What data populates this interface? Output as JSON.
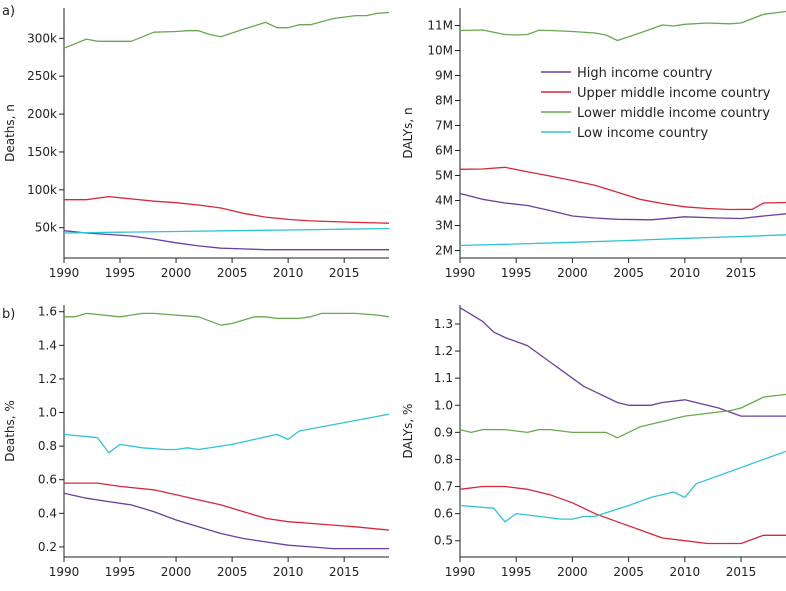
{
  "panel_labels": [
    "a)",
    "b)"
  ],
  "legend": {
    "entries": [
      {
        "name": "High income country",
        "color": "#6a3fa0"
      },
      {
        "name": "Upper middle income country",
        "color": "#d62839"
      },
      {
        "name": "Lower middle income country",
        "color": "#6aa84f"
      },
      {
        "name": "Low income country",
        "color": "#2ec4d6"
      }
    ]
  },
  "chart_data": [
    {
      "type": "line",
      "title": "",
      "xlabel": "",
      "ylabel": "Deaths, n",
      "xlim": [
        1990,
        2019
      ],
      "ylim": [
        10000,
        340000
      ],
      "xticks": [
        1990,
        1995,
        2000,
        2005,
        2010,
        2015
      ],
      "xtick_labels": [
        "1990",
        "1995",
        "2000",
        "2005",
        "2010",
        "2015"
      ],
      "yticks": [
        50000,
        100000,
        150000,
        200000,
        250000,
        300000
      ],
      "ytick_labels": [
        "50k",
        "100k",
        "150k",
        "200k",
        "250k",
        "300k"
      ],
      "series": [
        {
          "name": "High income country",
          "color": "#6a3fa0",
          "x": [
            1990,
            1992,
            1994,
            1996,
            1998,
            2000,
            2002,
            2004,
            2006,
            2008,
            2010,
            2012,
            2014,
            2016,
            2019
          ],
          "y": [
            46000,
            43000,
            41000,
            39000,
            35000,
            30000,
            26000,
            23000,
            22000,
            21000,
            21000,
            21000,
            21000,
            21000,
            21000
          ]
        },
        {
          "name": "Upper middle income country",
          "color": "#d62839",
          "x": [
            1990,
            1992,
            1994,
            1996,
            1998,
            2000,
            2002,
            2004,
            2006,
            2008,
            2010,
            2012,
            2014,
            2016,
            2019
          ],
          "y": [
            87000,
            87000,
            91000,
            88000,
            85000,
            83000,
            80000,
            76000,
            69000,
            64000,
            61000,
            59000,
            58000,
            57000,
            56000
          ]
        },
        {
          "name": "Lower middle income country",
          "color": "#6aa84f",
          "x": [
            1990,
            1992,
            1993,
            1994,
            1996,
            1997,
            1998,
            2000,
            2001,
            2002,
            2003,
            2004,
            2006,
            2008,
            2009,
            2010,
            2011,
            2012,
            2013,
            2014,
            2016,
            2017,
            2018,
            2019
          ],
          "y": [
            287000,
            299000,
            296000,
            296000,
            296000,
            302000,
            308000,
            309000,
            310000,
            310000,
            305000,
            302000,
            312000,
            321000,
            314000,
            314000,
            318000,
            318000,
            322000,
            326000,
            330000,
            330000,
            333000,
            334000
          ]
        },
        {
          "name": "Low income country",
          "color": "#2ec4d6",
          "x": [
            1990,
            1995,
            2000,
            2005,
            2010,
            2015,
            2019
          ],
          "y": [
            43000,
            44000,
            45000,
            46000,
            47000,
            48000,
            49000
          ]
        }
      ]
    },
    {
      "type": "line",
      "title": "",
      "xlabel": "",
      "ylabel": "DALYs, n",
      "xlim": [
        1990,
        2019
      ],
      "ylim": [
        1700000,
        11700000
      ],
      "xticks": [
        1990,
        1995,
        2000,
        2005,
        2010,
        2015
      ],
      "xtick_labels": [
        "1990",
        "1995",
        "2000",
        "2005",
        "2010",
        "2015"
      ],
      "yticks": [
        2000000,
        3000000,
        4000000,
        5000000,
        6000000,
        7000000,
        8000000,
        9000000,
        10000000,
        11000000
      ],
      "ytick_labels": [
        "2M",
        "3M",
        "4M",
        "5M",
        "6M",
        "7M",
        "8M",
        "9M",
        "10M",
        "11M"
      ],
      "series": [
        {
          "name": "High income country",
          "color": "#6a3fa0",
          "x": [
            1990,
            1992,
            1994,
            1996,
            1998,
            2000,
            2002,
            2004,
            2007,
            2010,
            2013,
            2015,
            2017,
            2019
          ],
          "y": [
            4280000,
            4050000,
            3900000,
            3800000,
            3600000,
            3380000,
            3300000,
            3250000,
            3230000,
            3350000,
            3300000,
            3280000,
            3380000,
            3470000
          ]
        },
        {
          "name": "Upper middle income country",
          "color": "#d62839",
          "x": [
            1990,
            1992,
            1994,
            1996,
            1998,
            2000,
            2002,
            2004,
            2006,
            2008,
            2010,
            2012,
            2014,
            2016,
            2017,
            2019
          ],
          "y": [
            5250000,
            5260000,
            5330000,
            5150000,
            4980000,
            4800000,
            4610000,
            4330000,
            4050000,
            3880000,
            3750000,
            3680000,
            3640000,
            3650000,
            3900000,
            3920000
          ]
        },
        {
          "name": "Lower middle income country",
          "color": "#6aa84f",
          "x": [
            1990,
            1992,
            1994,
            1995,
            1996,
            1997,
            1998,
            2000,
            2002,
            2003,
            2004,
            2006,
            2008,
            2009,
            2010,
            2012,
            2014,
            2015,
            2017,
            2019
          ],
          "y": [
            10800000,
            10820000,
            10640000,
            10620000,
            10640000,
            10810000,
            10800000,
            10760000,
            10700000,
            10620000,
            10400000,
            10700000,
            11020000,
            10980000,
            11050000,
            11100000,
            11070000,
            11100000,
            11450000,
            11560000
          ]
        },
        {
          "name": "Low income country",
          "color": "#2ec4d6",
          "x": [
            1990,
            1995,
            2000,
            2005,
            2010,
            2015,
            2019
          ],
          "y": [
            2200000,
            2260000,
            2330000,
            2400000,
            2490000,
            2560000,
            2630000
          ]
        }
      ]
    },
    {
      "type": "line",
      "title": "",
      "xlabel": "",
      "ylabel": "Deaths, %",
      "xlim": [
        1990,
        2019
      ],
      "ylim": [
        0.14,
        1.64
      ],
      "xticks": [
        1990,
        1995,
        2000,
        2005,
        2010,
        2015
      ],
      "xtick_labels": [
        "1990",
        "1995",
        "2000",
        "2005",
        "2010",
        "2015"
      ],
      "yticks": [
        0.2,
        0.4,
        0.6,
        0.8,
        1.0,
        1.2,
        1.4,
        1.6
      ],
      "ytick_labels": [
        "0.2",
        "0.4",
        "0.6",
        "0.8",
        "1.0",
        "1.2",
        "1.4",
        "1.6"
      ],
      "series": [
        {
          "name": "High income country",
          "color": "#6a3fa0",
          "x": [
            1990,
            1992,
            1994,
            1996,
            1998,
            2000,
            2002,
            2004,
            2006,
            2008,
            2010,
            2012,
            2014,
            2016,
            2019
          ],
          "y": [
            0.52,
            0.49,
            0.47,
            0.45,
            0.41,
            0.36,
            0.32,
            0.28,
            0.25,
            0.23,
            0.21,
            0.2,
            0.19,
            0.19,
            0.19
          ]
        },
        {
          "name": "Upper middle income country",
          "color": "#d62839",
          "x": [
            1990,
            1993,
            1995,
            1998,
            2000,
            2002,
            2004,
            2006,
            2008,
            2010,
            2012,
            2014,
            2016,
            2019
          ],
          "y": [
            0.58,
            0.58,
            0.56,
            0.54,
            0.51,
            0.48,
            0.45,
            0.41,
            0.37,
            0.35,
            0.34,
            0.33,
            0.32,
            0.3
          ]
        },
        {
          "name": "Lower middle income country",
          "color": "#6aa84f",
          "x": [
            1990,
            1991,
            1992,
            1995,
            1997,
            1998,
            2000,
            2002,
            2004,
            2005,
            2006,
            2007,
            2008,
            2009,
            2010,
            2011,
            2012,
            2013,
            2014,
            2016,
            2018,
            2019
          ],
          "y": [
            1.57,
            1.57,
            1.59,
            1.57,
            1.59,
            1.59,
            1.58,
            1.57,
            1.52,
            1.53,
            1.55,
            1.57,
            1.57,
            1.56,
            1.56,
            1.56,
            1.57,
            1.59,
            1.59,
            1.59,
            1.58,
            1.57
          ]
        },
        {
          "name": "Low income country",
          "color": "#2ec4d6",
          "x": [
            1990,
            1993,
            1994,
            1995,
            1997,
            1999,
            2000,
            2001,
            2002,
            2005,
            2007,
            2009,
            2010,
            2011,
            2019
          ],
          "y": [
            0.87,
            0.85,
            0.76,
            0.81,
            0.79,
            0.78,
            0.78,
            0.79,
            0.78,
            0.81,
            0.84,
            0.87,
            0.84,
            0.89,
            0.99
          ]
        }
      ]
    },
    {
      "type": "line",
      "title": "",
      "xlabel": "",
      "ylabel": "DALYs, %",
      "xlim": [
        1990,
        2019
      ],
      "ylim": [
        0.44,
        1.37
      ],
      "xticks": [
        1990,
        1995,
        2000,
        2005,
        2010,
        2015
      ],
      "xtick_labels": [
        "1990",
        "1995",
        "2000",
        "2005",
        "2010",
        "2015"
      ],
      "yticks": [
        0.5,
        0.6,
        0.7,
        0.8,
        0.9,
        1.0,
        1.1,
        1.2,
        1.3
      ],
      "ytick_labels": [
        "0.5",
        "0.6",
        "0.7",
        "0.8",
        "0.9",
        "1.0",
        "1.1",
        "1.2",
        "1.3"
      ],
      "series": [
        {
          "name": "High income country",
          "color": "#6a3fa0",
          "x": [
            1990,
            1992,
            1993,
            1994,
            1996,
            1998,
            2000,
            2001,
            2002,
            2004,
            2005,
            2006,
            2007,
            2008,
            2010,
            2013,
            2015,
            2019
          ],
          "y": [
            1.36,
            1.31,
            1.27,
            1.25,
            1.22,
            1.16,
            1.1,
            1.07,
            1.05,
            1.01,
            1.0,
            1.0,
            1.0,
            1.01,
            1.02,
            0.99,
            0.96,
            0.96
          ]
        },
        {
          "name": "Upper middle income country",
          "color": "#d62839",
          "x": [
            1990,
            1992,
            1994,
            1996,
            1998,
            2000,
            2002,
            2004,
            2006,
            2008,
            2010,
            2012,
            2015,
            2017,
            2019
          ],
          "y": [
            0.69,
            0.7,
            0.7,
            0.69,
            0.67,
            0.64,
            0.6,
            0.57,
            0.54,
            0.51,
            0.5,
            0.49,
            0.49,
            0.52,
            0.52
          ]
        },
        {
          "name": "Lower middle income country",
          "color": "#6aa84f",
          "x": [
            1990,
            1991,
            1992,
            1994,
            1996,
            1997,
            1998,
            2000,
            2003,
            2004,
            2006,
            2008,
            2010,
            2012,
            2014,
            2015,
            2017,
            2019
          ],
          "y": [
            0.91,
            0.9,
            0.91,
            0.91,
            0.9,
            0.91,
            0.91,
            0.9,
            0.9,
            0.88,
            0.92,
            0.94,
            0.96,
            0.97,
            0.98,
            0.99,
            1.03,
            1.04
          ]
        },
        {
          "name": "Low income country",
          "color": "#2ec4d6",
          "x": [
            1990,
            1993,
            1994,
            1995,
            1997,
            1999,
            2000,
            2001,
            2002,
            2005,
            2007,
            2009,
            2010,
            2011,
            2019
          ],
          "y": [
            0.63,
            0.62,
            0.57,
            0.6,
            0.59,
            0.58,
            0.58,
            0.59,
            0.59,
            0.63,
            0.66,
            0.68,
            0.66,
            0.71,
            0.83
          ]
        }
      ]
    }
  ]
}
